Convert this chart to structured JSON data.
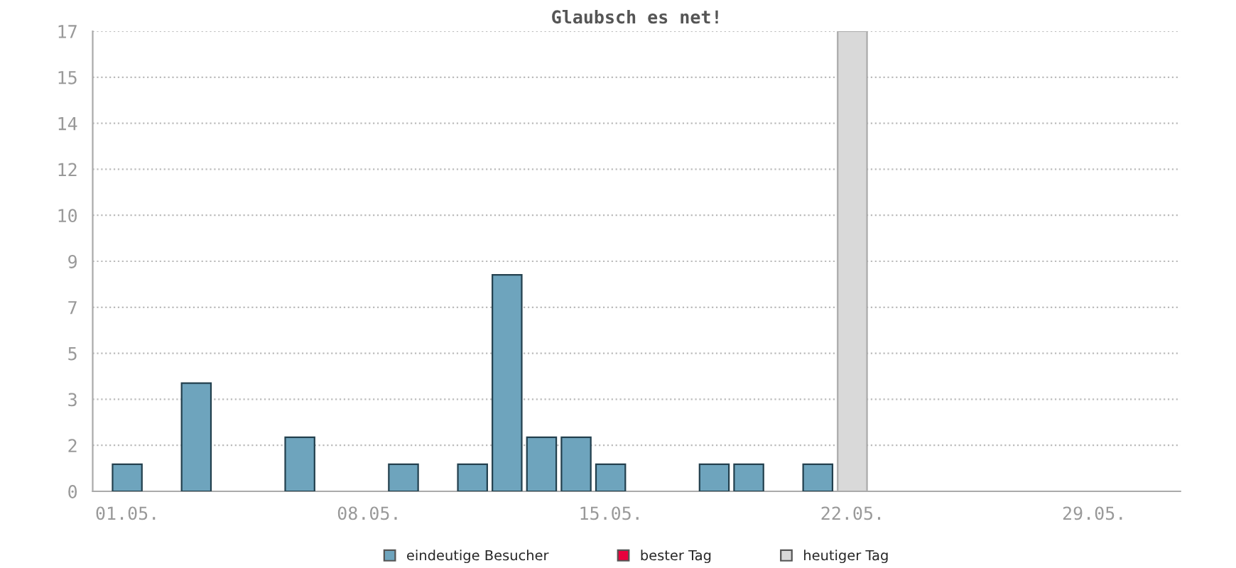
{
  "chart_data": {
    "type": "bar",
    "title": "Glaubsch es net!",
    "categories": [
      "01.05.",
      null,
      null,
      null,
      null,
      null,
      null,
      "08.05.",
      null,
      null,
      null,
      null,
      null,
      null,
      "15.05.",
      null,
      null,
      null,
      null,
      null,
      null,
      "22.05.",
      null,
      null,
      null,
      null,
      null,
      null,
      "29.05.",
      null,
      null
    ],
    "series": [
      {
        "name": "eindeutige Besucher",
        "color": "#6ea4bd",
        "values": [
          1,
          null,
          4,
          null,
          null,
          2,
          null,
          null,
          1,
          null,
          1,
          8,
          2,
          2,
          1,
          null,
          null,
          1,
          1,
          null,
          1,
          null,
          null,
          null,
          null,
          null,
          null,
          null,
          null,
          null,
          null
        ]
      },
      {
        "name": "bester Tag",
        "color": "#e8003d",
        "values": [
          null,
          null,
          null,
          null,
          null,
          null,
          null,
          null,
          null,
          null,
          null,
          null,
          null,
          null,
          null,
          null,
          null,
          null,
          null,
          null,
          null,
          null,
          null,
          null,
          null,
          null,
          null,
          null,
          null,
          null,
          null
        ]
      },
      {
        "name": "heutiger Tag",
        "color": "#d9d9d9",
        "values": [
          null,
          null,
          null,
          null,
          null,
          null,
          null,
          null,
          null,
          null,
          null,
          null,
          null,
          null,
          null,
          null,
          null,
          null,
          null,
          null,
          null,
          17,
          null,
          null,
          null,
          null,
          null,
          null,
          null,
          null,
          null
        ]
      }
    ],
    "ylim": [
      0,
      17
    ],
    "yticks": [
      0,
      {
        "value": 1.7,
        "label": "2"
      },
      {
        "value": 3.4,
        "label": "3"
      },
      {
        "value": 5.1,
        "label": "5"
      },
      {
        "value": 6.8,
        "label": "7"
      },
      {
        "value": 8.5,
        "label": "9"
      },
      {
        "value": 10.2,
        "label": "10"
      },
      {
        "value": 11.9,
        "label": "12"
      },
      {
        "value": 13.6,
        "label": "14"
      },
      {
        "value": 15.3,
        "label": "15"
      },
      17
    ],
    "grid": "y",
    "legend": "bottom"
  }
}
